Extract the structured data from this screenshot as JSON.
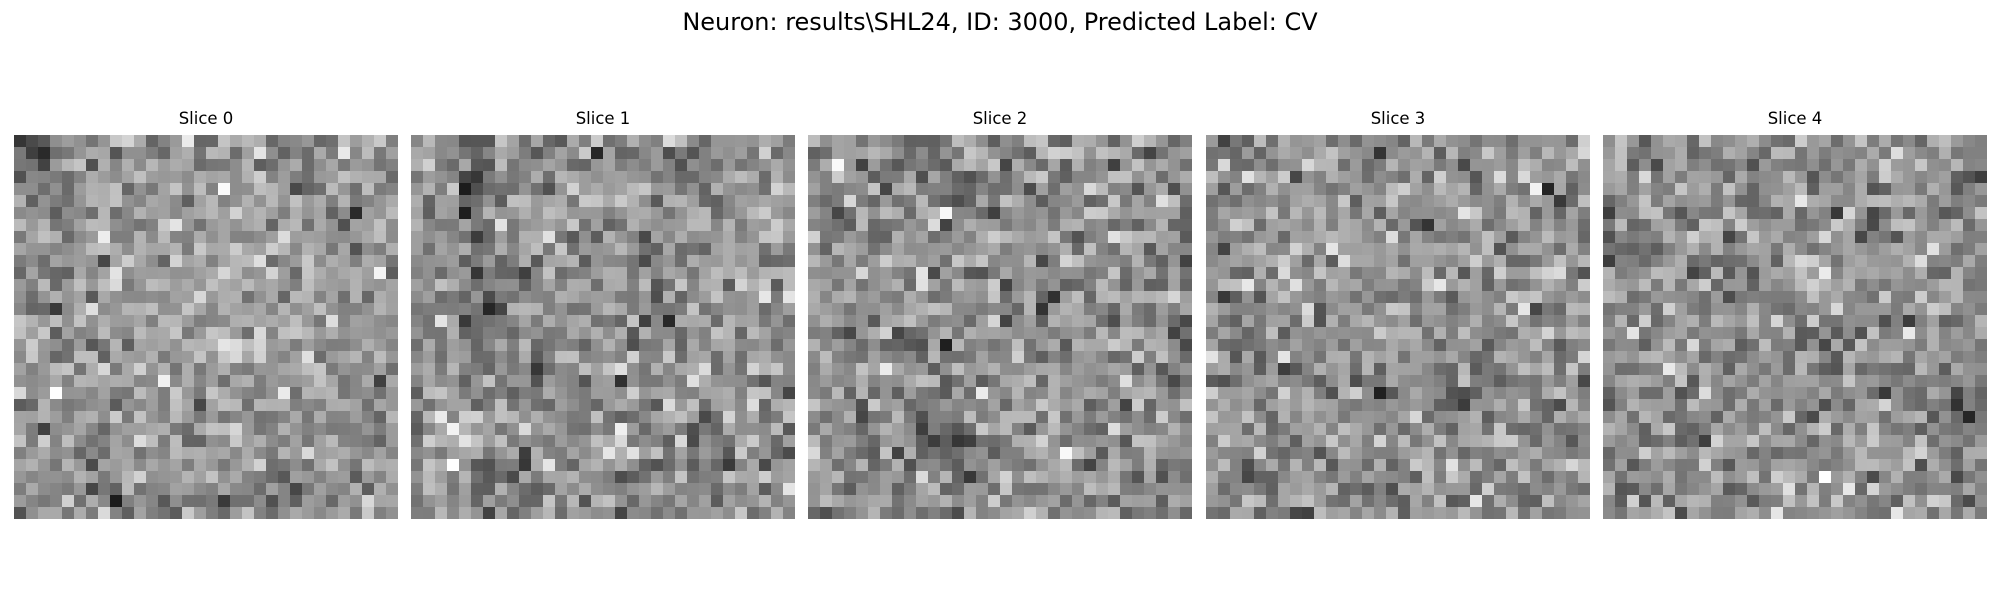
{
  "figure": {
    "title": "Neuron: results\\SHL24, ID: 3000, Predicted Label: CV",
    "colormap": "gray"
  },
  "slices": [
    {
      "label": "Slice 0"
    },
    {
      "label": "Slice 1"
    },
    {
      "label": "Slice 2"
    },
    {
      "label": "Slice 3"
    },
    {
      "label": "Slice 4"
    }
  ]
}
